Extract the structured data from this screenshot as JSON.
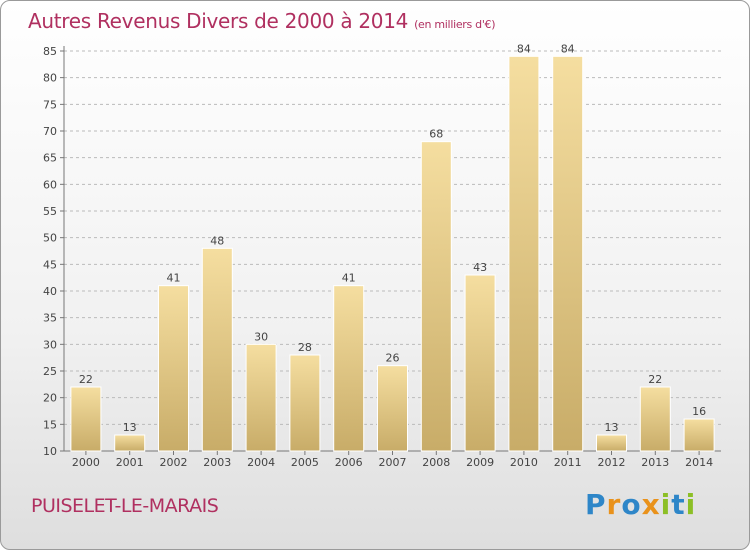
{
  "header": {
    "title": "Autres Revenus Divers de 2000 à 2014",
    "subtitle": "(en milliers d'€)"
  },
  "footer": {
    "commune": "PUISELET-LE-MARAIS",
    "logo_text": "Proxiti"
  },
  "colors": {
    "title": "#b03060",
    "bar_light": "#f5dea0",
    "bar_dark": "#c8ac68",
    "grid": "#bbbbbb",
    "logo_letters": [
      "#2e86c8",
      "#e9921b",
      "#2e86c8",
      "#e9921b",
      "#8cbf26",
      "#2e86c8",
      "#8cbf26"
    ]
  },
  "chart_data": {
    "type": "bar",
    "categories": [
      "2000",
      "2001",
      "2002",
      "2003",
      "2004",
      "2005",
      "2006",
      "2007",
      "2008",
      "2009",
      "2010",
      "2011",
      "2012",
      "2013",
      "2014"
    ],
    "values": [
      22,
      13,
      41,
      48,
      30,
      28,
      41,
      26,
      68,
      43,
      84,
      84,
      13,
      22,
      16
    ],
    "ylim": [
      10,
      85
    ],
    "yticks": [
      10,
      15,
      20,
      25,
      30,
      35,
      40,
      45,
      50,
      55,
      60,
      65,
      70,
      75,
      80,
      85
    ],
    "grid": true,
    "grid_style": "dashed horizontal"
  }
}
